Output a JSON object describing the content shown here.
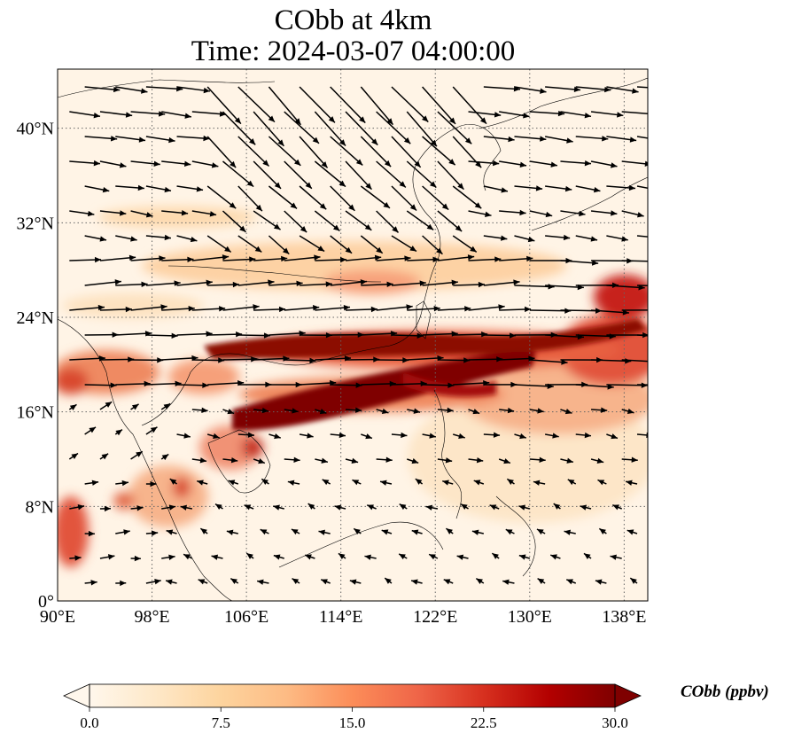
{
  "title": {
    "line1": "CObb at 4km",
    "line2": "Time: 2024-03-07 04:00:00"
  },
  "map": {
    "projection": "PlateCarree",
    "lon_range": [
      90,
      140
    ],
    "lat_range": [
      0,
      45
    ],
    "gridlines": "dotted",
    "lon_ticks": [
      "90°E",
      "98°E",
      "106°E",
      "114°E",
      "122°E",
      "130°E",
      "138°E"
    ],
    "lat_ticks": [
      "0°",
      "8°N",
      "16°N",
      "24°N",
      "32°N",
      "40°N"
    ]
  },
  "colorbar": {
    "label": "CObb (ppbv)",
    "ticks": [
      "0.0",
      "7.5",
      "15.0",
      "22.5",
      "30.0"
    ],
    "range": [
      0,
      30
    ],
    "extend": "both",
    "colormap": "OrRd",
    "colors": [
      "#fff7ec",
      "#fee8c8",
      "#fdd49e",
      "#fdbb84",
      "#fc8d59",
      "#ef6548",
      "#d7301f",
      "#b30000",
      "#7f0000"
    ]
  },
  "colors": {
    "land_outline": "#000000",
    "wind_vectors": "#000000",
    "grid": "#777777",
    "background": "#fff7ec"
  }
}
